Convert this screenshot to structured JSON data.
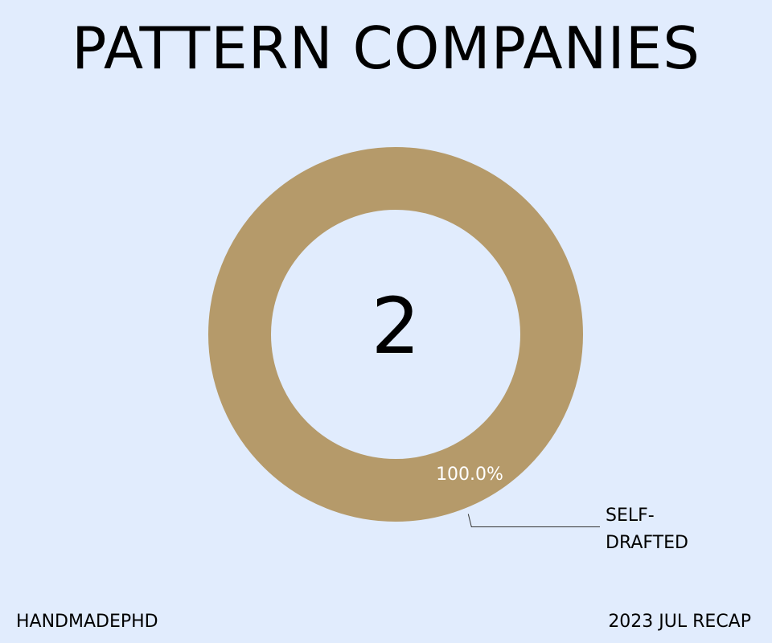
{
  "colors": {
    "background": "#e1ecfd",
    "slice": "#b59a6a",
    "text": "#000000",
    "slice_label": "#ffffff",
    "leader_line": "#333333"
  },
  "footer": {
    "left": "HANDMADEPHD",
    "right": "2023 JUL RECAP"
  },
  "chart_data": {
    "type": "pie",
    "variant": "donut",
    "title": "PATTERN COMPANIES",
    "center_label": "2",
    "slices": [
      {
        "label_lines": [
          "SELF-",
          "DRAFTED"
        ],
        "value": 100.0,
        "percent_label": "100.0%",
        "color": "#b59a6a"
      }
    ]
  }
}
